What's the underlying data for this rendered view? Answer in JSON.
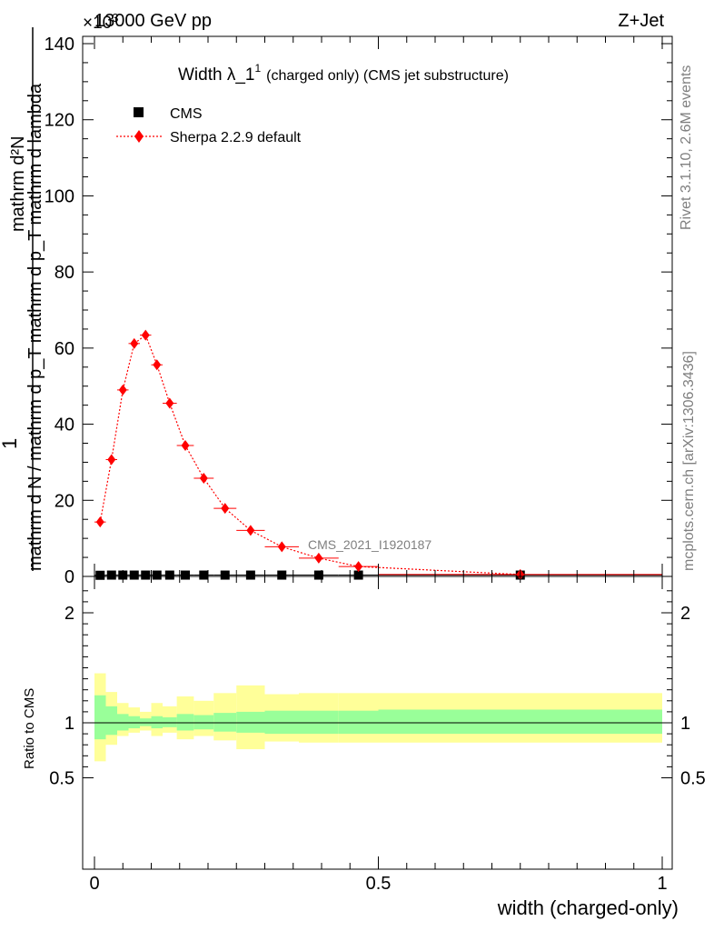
{
  "header": {
    "energy_label": "13000 GeV pp",
    "process_label": "Z+Jet",
    "exponent_label": "×10",
    "exponent_sup": "3"
  },
  "side_labels": {
    "rivet": "Rivet 3.1.10,  2.6M events",
    "mcplots": "mcplots.cern.ch [arXiv:1306.3436]"
  },
  "chart_data": {
    "type": "scatter",
    "title": "Width λ_1",
    "title_sup": "1",
    "title_suffix": "(charged only) (CMS jet substructure)",
    "analysis_label": "CMS_2021_I1920187",
    "xlabel": "width (charged-only)",
    "ylabel_numerator": "mathrm d²N",
    "ylabel_fraction_top": "1",
    "ylabel_denominator": "mathrm d N / mathrm d p_T mathrm d p_T mathrm d lambda",
    "ratio_ylabel": "Ratio to CMS",
    "xlim": [
      0,
      1
    ],
    "ylim": [
      0,
      140
    ],
    "y_ticks": [
      "0",
      "20",
      "40",
      "60",
      "80",
      "100",
      "120",
      "140"
    ],
    "x_ticks": [
      "0",
      "0.5",
      "1"
    ],
    "ratio_ylim": [
      0.4,
      2.3
    ],
    "ratio_ticks": [
      "0.5",
      "1",
      "2"
    ],
    "legend_position": "top-left",
    "legend": [
      {
        "label": "CMS",
        "marker": "square",
        "color": "#000000"
      },
      {
        "label": "Sherpa 2.2.9 default",
        "marker": "diamond",
        "color": "#ff0000"
      }
    ],
    "bins": [
      0,
      0.02,
      0.04,
      0.06,
      0.08,
      0.1,
      0.12,
      0.145,
      0.175,
      0.21,
      0.25,
      0.3,
      0.36,
      0.43,
      0.5,
      1.0
    ],
    "series": [
      {
        "name": "CMS",
        "x": [
          0.01,
          0.03,
          0.05,
          0.07,
          0.09,
          0.11,
          0.1325,
          0.16,
          0.1925,
          0.23,
          0.275,
          0.33,
          0.395,
          0.465,
          0.75
        ],
        "y": [
          0.3,
          0.35,
          0.35,
          0.35,
          0.35,
          0.35,
          0.35,
          0.35,
          0.35,
          0.35,
          0.35,
          0.35,
          0.35,
          0.35,
          0.35
        ]
      },
      {
        "name": "Sherpa 2.2.9 default",
        "x": [
          0.01,
          0.03,
          0.05,
          0.07,
          0.09,
          0.11,
          0.1325,
          0.16,
          0.1925,
          0.23,
          0.275,
          0.33,
          0.395,
          0.465,
          0.75
        ],
        "y": [
          14.3,
          30.7,
          49.0,
          61.2,
          63.4,
          55.6,
          45.5,
          34.4,
          25.8,
          17.9,
          12.1,
          7.8,
          4.8,
          2.6,
          0.5
        ]
      }
    ],
    "ratio_bands": {
      "inner_hi": [
        1.25,
        1.15,
        1.08,
        1.06,
        1.04,
        1.06,
        1.05,
        1.08,
        1.07,
        1.09,
        1.1,
        1.11,
        1.11,
        1.11,
        1.12
      ],
      "inner_lo": [
        0.85,
        0.89,
        0.93,
        0.95,
        0.97,
        0.95,
        0.96,
        0.93,
        0.94,
        0.92,
        0.91,
        0.9,
        0.9,
        0.9,
        0.9
      ],
      "outer_hi": [
        1.45,
        1.28,
        1.18,
        1.14,
        1.1,
        1.18,
        1.15,
        1.24,
        1.2,
        1.27,
        1.34,
        1.26,
        1.27,
        1.27,
        1.27
      ],
      "outer_lo": [
        0.65,
        0.8,
        0.88,
        0.91,
        0.93,
        0.88,
        0.91,
        0.85,
        0.88,
        0.84,
        0.76,
        0.83,
        0.82,
        0.82,
        0.82
      ]
    },
    "colors": {
      "inner_band": "#99ff99",
      "outer_band": "#ffff99",
      "mc_line": "#ff0000",
      "data": "#000000",
      "analysis_label": "#7f7f7f"
    }
  }
}
